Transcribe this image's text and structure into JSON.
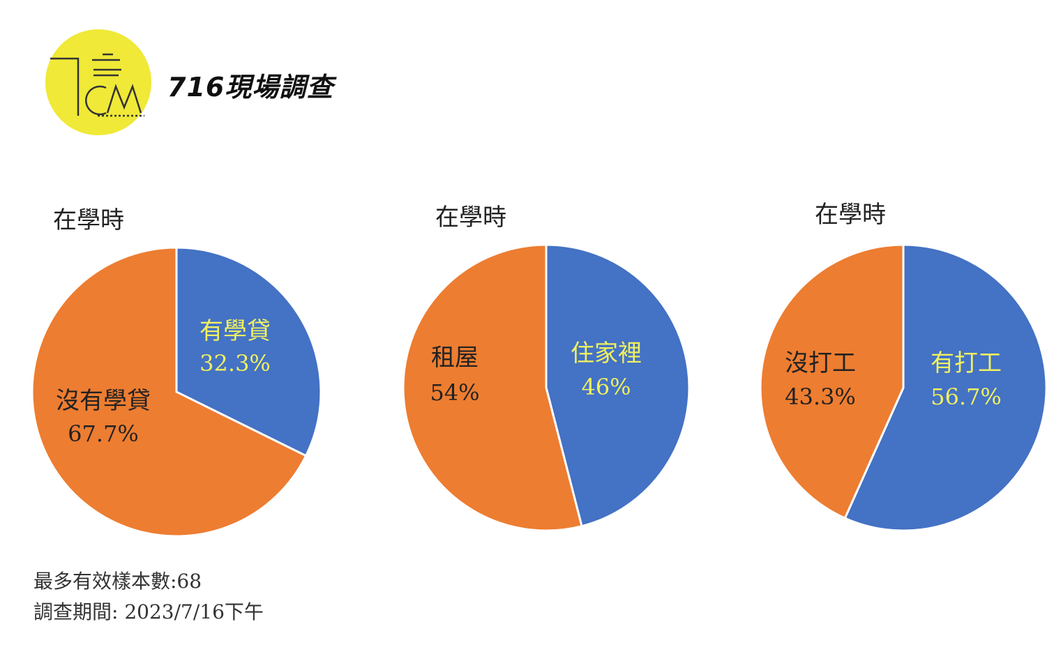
{
  "header": {
    "brand_title": "716現場調查",
    "logo_color": "#f0e937"
  },
  "chart_data": [
    {
      "type": "pie",
      "title": "在學時",
      "colors": [
        "#4472c4",
        "#ed7d31"
      ],
      "slices": [
        {
          "label": "有學貸",
          "value": 32.3,
          "value_label": "32.3%",
          "label_color": "#f0f060"
        },
        {
          "label": "沒有學貸",
          "value": 67.7,
          "value_label": "67.7%",
          "label_color": "#222222"
        }
      ]
    },
    {
      "type": "pie",
      "title": "在學時",
      "colors": [
        "#4472c4",
        "#ed7d31"
      ],
      "slices": [
        {
          "label": "住家裡",
          "value": 46,
          "value_label": "46%",
          "label_color": "#f0f060"
        },
        {
          "label": "租屋",
          "value": 54,
          "value_label": "54%",
          "label_color": "#222222"
        }
      ]
    },
    {
      "type": "pie",
      "title": "在學時",
      "colors": [
        "#4472c4",
        "#ed7d31"
      ],
      "slices": [
        {
          "label": "有打工",
          "value": 56.7,
          "value_label": "56.7%",
          "label_color": "#f0f060"
        },
        {
          "label": "沒打工",
          "value": 43.3,
          "value_label": "43.3%",
          "label_color": "#222222"
        }
      ]
    }
  ],
  "footer": {
    "sample_size": "最多有效樣本數:68",
    "survey_period": "調查期間: 2023/7/16下午"
  }
}
